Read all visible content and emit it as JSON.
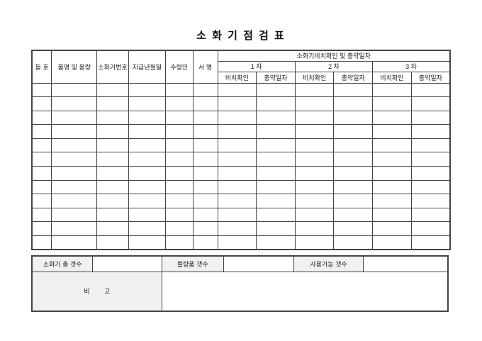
{
  "title": "소 화 기 점 검 표",
  "table": {
    "columns": {
      "unit": "동 호",
      "product": "품명 및 용량",
      "serial": "소화기번호",
      "issue_date": "지급년월일",
      "receiver": "수령인",
      "signature": "서 명"
    },
    "check_group": {
      "title": "소화기비치확인 및 충약일자",
      "rounds": [
        "1 차",
        "2 차",
        "3 차"
      ],
      "sub_columns": [
        "비치확인",
        "충약일자"
      ]
    },
    "body_row_count": 12
  },
  "summary": {
    "total": {
      "label": "소화기 총 갯수",
      "value": ""
    },
    "defective": {
      "label": "불량품 갯수",
      "value": ""
    },
    "usable": {
      "label": "사용가능 갯수",
      "value": ""
    },
    "remarks": {
      "label": "비 고",
      "value": ""
    }
  },
  "colors": {
    "border": "#454545",
    "label_bg": "#f1f1f1",
    "page_bg": "#ffffff",
    "text": "#1a1a1a"
  }
}
